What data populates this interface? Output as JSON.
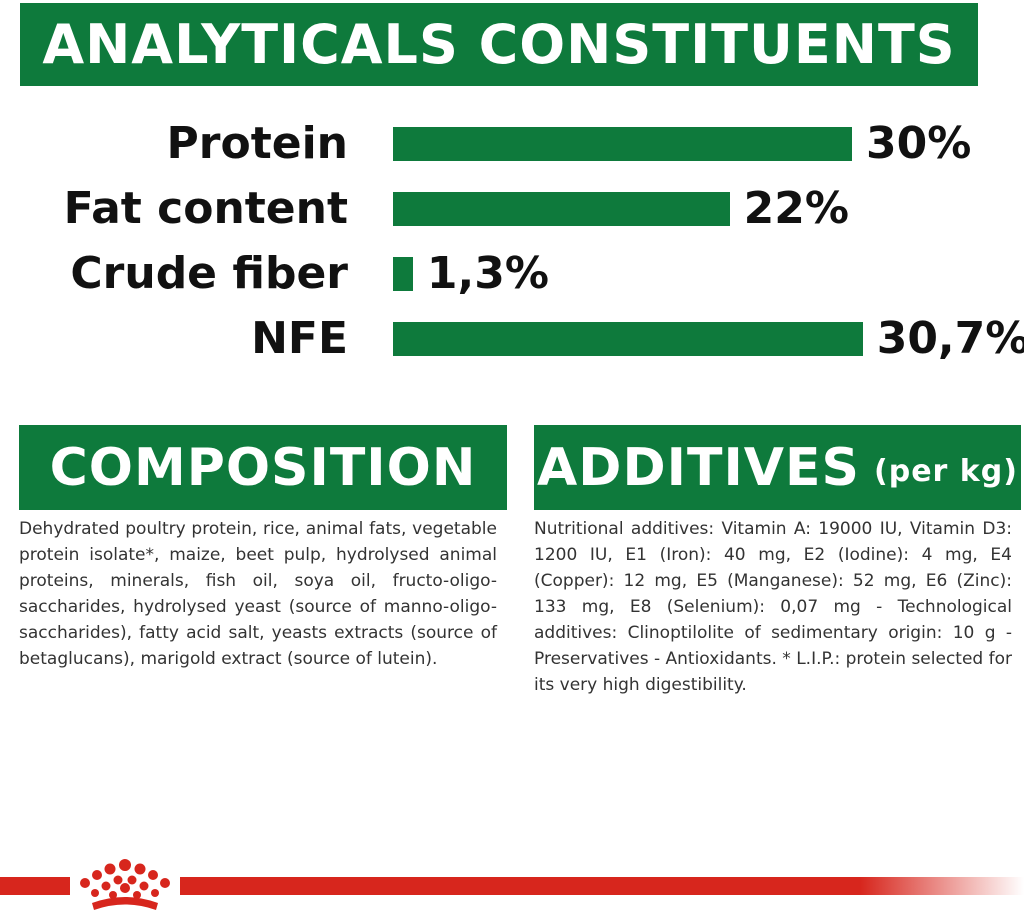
{
  "header": {
    "title": "ANALYTICALS CONSTITUENTS"
  },
  "nutrients": [
    {
      "label": "Protein",
      "value_text": "30%",
      "value": 30
    },
    {
      "label": "Fat content",
      "value_text": "22%",
      "value": 22
    },
    {
      "label": "Crude fiber",
      "value_text": "1,3%",
      "value": 1.3
    },
    {
      "label": "NFE",
      "value_text": "30,7%",
      "value": 30.7
    }
  ],
  "composition": {
    "title": "COMPOSITION",
    "text": "Dehydrated poultry protein, rice, animal fats, vegetable protein isolate*, maize, beet pulp, hydrolysed animal proteins, minerals, fish oil, soya oil, fructo-oligo-saccharides, hydrolysed yeast (source of manno-oligo-saccharides), fatty acid salt, yeasts extracts (source of betaglucans), marigold extract (source of lutein)."
  },
  "additives": {
    "title": "ADDITIVES",
    "subtitle": "(per kg)",
    "text": "Nutritional additives: Vitamin A: 19000 IU, Vitamin D3: 1200 IU, E1 (Iron): 40 mg, E2 (Iodine): 4 mg, E4 (Copper): 12 mg, E5 (Manganese): 52 mg, E6 (Zinc): 133 mg, E8 (Selenium): 0,07 mg - Technological additives: Clinoptilolite of sedimentary origin: 10 g - Preservatives - Antioxidants. * L.I.P.: protein selected for its very high digestibility."
  },
  "colors": {
    "green": "#0e7a3c",
    "red": "#d7261d",
    "text": "#111111"
  },
  "footer": {
    "logo_icon": "crown-icon"
  }
}
